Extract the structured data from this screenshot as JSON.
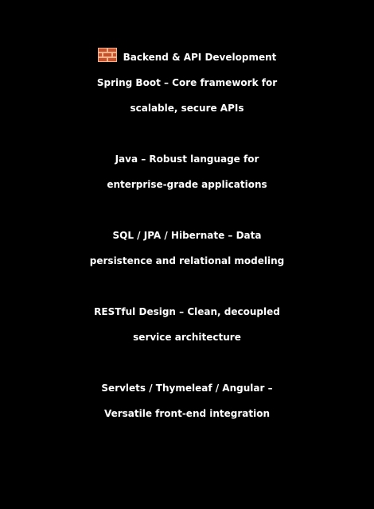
{
  "heading": {
    "icon": "brick-icon",
    "icon_colors": {
      "brick": "#c8502c",
      "mortar": "#f0b38a"
    },
    "text": "Backend & API Development"
  },
  "items": [
    {
      "line1": "Spring Boot – Core framework for",
      "line2": "scalable, secure APIs"
    },
    {
      "line1": "Java – Robust language for",
      "line2": "enterprise-grade applications"
    },
    {
      "line1": "SQL / JPA / Hibernate – Data",
      "line2": "persistence and relational modeling"
    },
    {
      "line1": "RESTful Design – Clean, decoupled",
      "line2": "service architecture"
    },
    {
      "line1": "Servlets / Thymeleaf / Angular –",
      "line2": "Versatile front-end integration"
    }
  ]
}
